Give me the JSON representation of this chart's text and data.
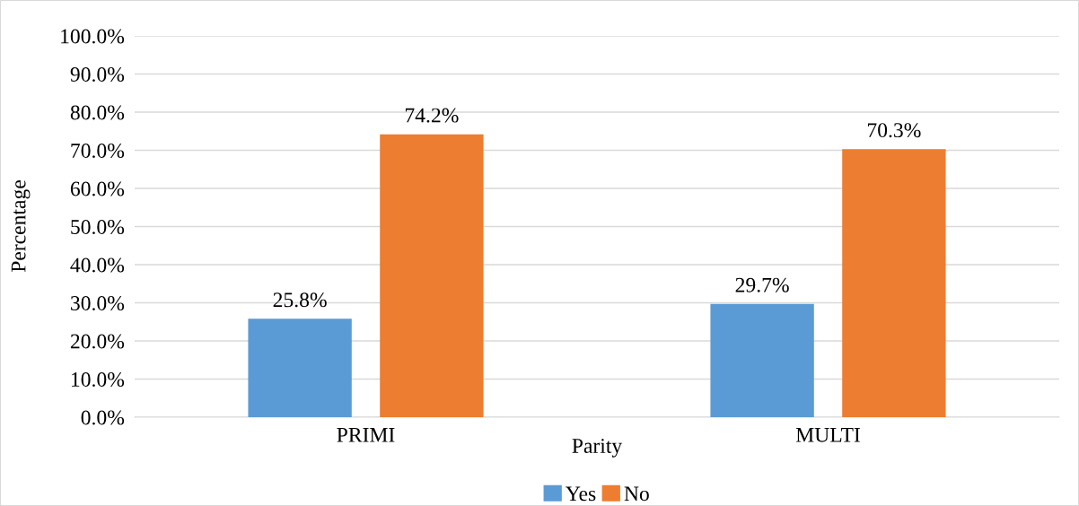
{
  "chart_data": {
    "type": "bar",
    "xlabel": "Parity",
    "ylabel": "Percentage",
    "categories": [
      "PRIMI",
      "MULTI"
    ],
    "series": [
      {
        "name": "Yes",
        "color": "#5b9bd5",
        "values": [
          25.8,
          29.7
        ],
        "value_labels": [
          "25.8%",
          "29.7%"
        ]
      },
      {
        "name": "No",
        "color": "#ed7d31",
        "values": [
          74.2,
          70.3
        ],
        "value_labels": [
          "74.2%",
          "70.3%"
        ]
      }
    ],
    "ylim": [
      0,
      100
    ],
    "yticks": [
      {
        "value": 0,
        "label": "0.0%"
      },
      {
        "value": 10,
        "label": "10.0%"
      },
      {
        "value": 20,
        "label": "20.0%"
      },
      {
        "value": 30,
        "label": "30.0%"
      },
      {
        "value": 40,
        "label": "40.0%"
      },
      {
        "value": 50,
        "label": "50.0%"
      },
      {
        "value": 60,
        "label": "60.0%"
      },
      {
        "value": 70,
        "label": "70.0%"
      },
      {
        "value": 80,
        "label": "80.0%"
      },
      {
        "value": 90,
        "label": "90.0%"
      },
      {
        "value": 100,
        "label": "100.0%"
      }
    ],
    "grid": "y",
    "legend": "bottom"
  }
}
